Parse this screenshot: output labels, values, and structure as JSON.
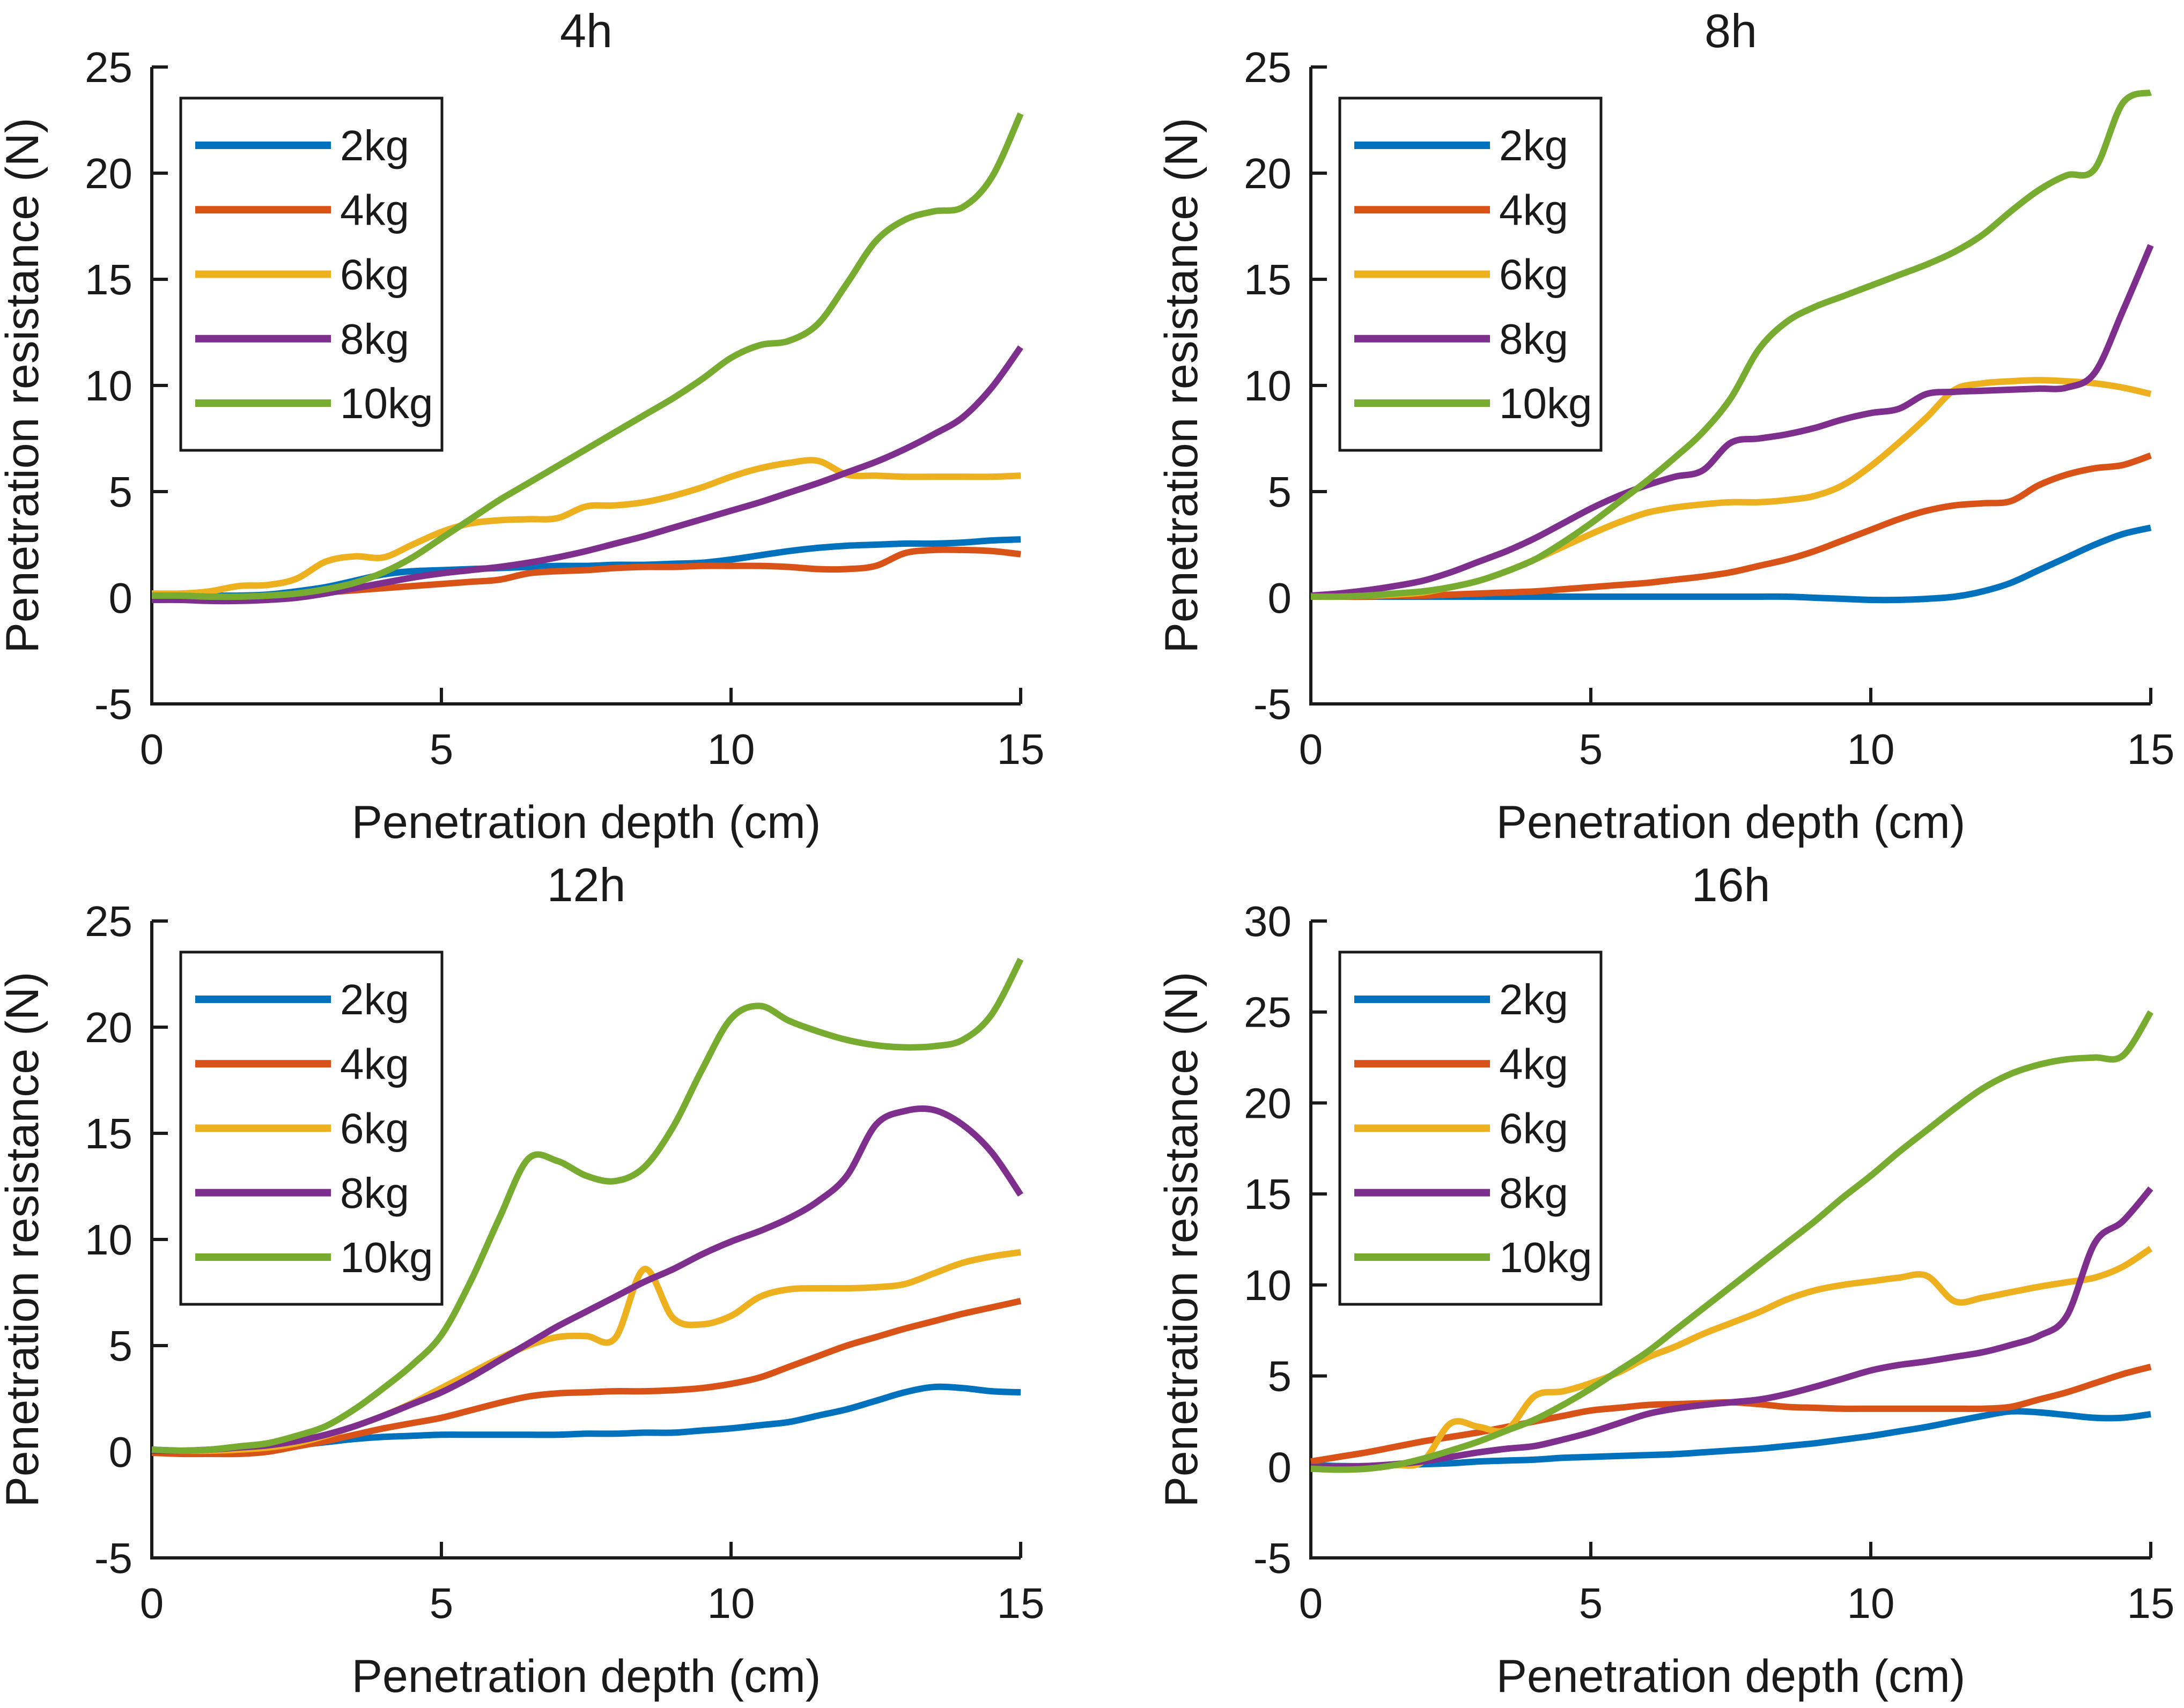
{
  "page": {
    "background": "#ffffff",
    "text_color": "#1a1a1a",
    "axis_color": "#1a1a1a"
  },
  "chart_data": [
    {
      "type": "line",
      "title": "4h",
      "xlabel": "Penetration depth（cm）",
      "ylabel": "Penetration resistance（N）",
      "xlim": [
        0,
        15
      ],
      "ylim": [
        -5,
        25
      ],
      "xticks": [
        0,
        5,
        10,
        15
      ],
      "yticks": [
        -5,
        0,
        5,
        10,
        15,
        20,
        25
      ],
      "grid": false,
      "legend_position": "top-left",
      "x_start": 0,
      "x_step": 0.5,
      "series": [
        {
          "name": "2kg",
          "color": "#0072BD",
          "values": [
            0.1,
            0.1,
            0.1,
            0.1,
            0.15,
            0.3,
            0.5,
            0.8,
            1.1,
            1.25,
            1.3,
            1.35,
            1.4,
            1.45,
            1.5,
            1.5,
            1.55,
            1.55,
            1.6,
            1.65,
            1.8,
            2.0,
            2.2,
            2.35,
            2.45,
            2.5,
            2.55,
            2.55,
            2.6,
            2.7,
            2.75
          ]
        },
        {
          "name": "4kg",
          "color": "#D95319",
          "values": [
            0.05,
            0.05,
            0.05,
            0.05,
            0.1,
            0.15,
            0.25,
            0.35,
            0.45,
            0.55,
            0.65,
            0.75,
            0.85,
            1.15,
            1.25,
            1.3,
            1.4,
            1.45,
            1.45,
            1.5,
            1.5,
            1.5,
            1.45,
            1.35,
            1.35,
            1.5,
            2.1,
            2.25,
            2.25,
            2.2,
            2.05
          ]
        },
        {
          "name": "6kg",
          "color": "#EDB120",
          "values": [
            0.2,
            0.2,
            0.3,
            0.55,
            0.6,
            0.9,
            1.7,
            1.95,
            1.9,
            2.5,
            3.1,
            3.5,
            3.65,
            3.7,
            3.75,
            4.3,
            4.35,
            4.5,
            4.8,
            5.2,
            5.7,
            6.1,
            6.35,
            6.45,
            5.8,
            5.75,
            5.7,
            5.7,
            5.7,
            5.7,
            5.75
          ]
        },
        {
          "name": "8kg",
          "color": "#7E2F8E",
          "values": [
            -0.1,
            -0.1,
            -0.15,
            -0.15,
            -0.1,
            0.0,
            0.2,
            0.45,
            0.7,
            0.95,
            1.15,
            1.3,
            1.45,
            1.65,
            1.9,
            2.2,
            2.55,
            2.9,
            3.3,
            3.7,
            4.1,
            4.5,
            4.95,
            5.4,
            5.9,
            6.4,
            7.0,
            7.7,
            8.5,
            9.9,
            11.8
          ]
        },
        {
          "name": "10kg",
          "color": "#77AC30",
          "values": [
            0.1,
            0.1,
            0.05,
            0.05,
            0.1,
            0.2,
            0.4,
            0.7,
            1.2,
            1.9,
            2.8,
            3.7,
            4.6,
            5.4,
            6.2,
            7.0,
            7.8,
            8.6,
            9.4,
            10.3,
            11.3,
            11.9,
            12.1,
            12.9,
            14.8,
            16.8,
            17.8,
            18.2,
            18.4,
            19.8,
            22.8
          ]
        }
      ]
    },
    {
      "type": "line",
      "title": "8h",
      "xlabel": "Penetration depth（cm）",
      "ylabel": "Penetration resistance（N）",
      "xlim": [
        0,
        15
      ],
      "ylim": [
        -5,
        25
      ],
      "xticks": [
        0,
        5,
        10,
        15
      ],
      "yticks": [
        -5,
        0,
        5,
        10,
        15,
        20,
        25
      ],
      "grid": false,
      "legend_position": "top-left",
      "x_start": 0,
      "x_step": 0.5,
      "series": [
        {
          "name": "2kg",
          "color": "#0072BD",
          "values": [
            0.05,
            0.05,
            0.05,
            0.05,
            0.05,
            0.05,
            0.05,
            0.05,
            0.05,
            0.05,
            0.05,
            0.05,
            0.05,
            0.05,
            0.05,
            0.05,
            0.05,
            0.05,
            0.0,
            -0.05,
            -0.1,
            -0.1,
            -0.05,
            0.05,
            0.3,
            0.7,
            1.3,
            1.9,
            2.5,
            3.0,
            3.3
          ]
        },
        {
          "name": "4kg",
          "color": "#D95319",
          "values": [
            0.05,
            0.05,
            0.05,
            0.1,
            0.1,
            0.15,
            0.2,
            0.25,
            0.3,
            0.4,
            0.5,
            0.6,
            0.7,
            0.85,
            1.0,
            1.2,
            1.5,
            1.8,
            2.2,
            2.7,
            3.2,
            3.7,
            4.1,
            4.35,
            4.45,
            4.55,
            5.3,
            5.8,
            6.1,
            6.25,
            6.7
          ]
        },
        {
          "name": "6kg",
          "color": "#EDB120",
          "values": [
            0.1,
            0.1,
            0.1,
            0.15,
            0.25,
            0.5,
            0.8,
            1.25,
            1.8,
            2.4,
            3.0,
            3.55,
            4.0,
            4.25,
            4.4,
            4.5,
            4.5,
            4.6,
            4.8,
            5.3,
            6.2,
            7.3,
            8.5,
            9.8,
            10.1,
            10.2,
            10.25,
            10.2,
            10.1,
            9.9,
            9.6
          ]
        },
        {
          "name": "8kg",
          "color": "#7E2F8E",
          "values": [
            0.1,
            0.2,
            0.35,
            0.55,
            0.8,
            1.2,
            1.7,
            2.2,
            2.8,
            3.5,
            4.2,
            4.8,
            5.3,
            5.7,
            6.0,
            7.3,
            7.5,
            7.7,
            8.0,
            8.4,
            8.7,
            8.9,
            9.6,
            9.7,
            9.75,
            9.8,
            9.85,
            9.9,
            10.6,
            13.5,
            16.6
          ]
        },
        {
          "name": "10kg",
          "color": "#77AC30",
          "values": [
            0.05,
            0.05,
            0.1,
            0.2,
            0.3,
            0.5,
            0.8,
            1.25,
            1.8,
            2.6,
            3.5,
            4.5,
            5.5,
            6.6,
            7.8,
            9.4,
            11.7,
            13.0,
            13.7,
            14.2,
            14.7,
            15.2,
            15.7,
            16.3,
            17.1,
            18.2,
            19.2,
            19.9,
            20.2,
            23.3,
            23.8
          ]
        }
      ]
    },
    {
      "type": "line",
      "title": "12h",
      "xlabel": "Penetration depth（cm）",
      "ylabel": "Penetration resistance（N）",
      "xlim": [
        0,
        15
      ],
      "ylim": [
        -5,
        25
      ],
      "xticks": [
        0,
        5,
        10,
        15
      ],
      "yticks": [
        -5,
        0,
        5,
        10,
        15,
        20,
        25
      ],
      "grid": false,
      "legend_position": "top-left",
      "x_start": 0,
      "x_step": 0.5,
      "series": [
        {
          "name": "2kg",
          "color": "#0072BD",
          "values": [
            0.1,
            0.05,
            0.05,
            0.1,
            0.15,
            0.3,
            0.45,
            0.6,
            0.7,
            0.75,
            0.8,
            0.8,
            0.8,
            0.8,
            0.8,
            0.85,
            0.85,
            0.9,
            0.9,
            1.0,
            1.1,
            1.25,
            1.4,
            1.7,
            2.0,
            2.4,
            2.8,
            3.05,
            3.0,
            2.85,
            2.8
          ]
        },
        {
          "name": "4kg",
          "color": "#D95319",
          "values": [
            -0.05,
            -0.1,
            -0.1,
            -0.1,
            0.0,
            0.25,
            0.5,
            0.8,
            1.1,
            1.35,
            1.6,
            1.95,
            2.3,
            2.6,
            2.75,
            2.8,
            2.85,
            2.85,
            2.9,
            3.0,
            3.2,
            3.5,
            4.0,
            4.5,
            5.0,
            5.4,
            5.8,
            6.15,
            6.5,
            6.8,
            7.1
          ]
        },
        {
          "name": "6kg",
          "color": "#EDB120",
          "values": [
            0.05,
            0.05,
            0.05,
            0.1,
            0.2,
            0.4,
            0.75,
            1.2,
            1.7,
            2.3,
            3.0,
            3.7,
            4.4,
            5.0,
            5.4,
            5.45,
            5.35,
            8.6,
            6.3,
            6.0,
            6.4,
            7.3,
            7.65,
            7.7,
            7.7,
            7.75,
            7.9,
            8.4,
            8.9,
            9.2,
            9.4
          ]
        },
        {
          "name": "8kg",
          "color": "#7E2F8E",
          "values": [
            0.05,
            0.05,
            0.1,
            0.2,
            0.3,
            0.5,
            0.8,
            1.2,
            1.7,
            2.25,
            2.8,
            3.5,
            4.3,
            5.1,
            5.9,
            6.6,
            7.3,
            8.0,
            8.6,
            9.3,
            9.9,
            10.4,
            11.0,
            11.8,
            13.0,
            15.4,
            16.05,
            16.1,
            15.4,
            14.1,
            12.1
          ]
        },
        {
          "name": "10kg",
          "color": "#77AC30",
          "values": [
            0.1,
            0.05,
            0.1,
            0.25,
            0.4,
            0.75,
            1.2,
            2.0,
            3.0,
            4.1,
            5.5,
            8.0,
            11.0,
            13.8,
            13.7,
            13.0,
            12.75,
            13.4,
            15.3,
            18.0,
            20.4,
            21.0,
            20.3,
            19.8,
            19.4,
            19.15,
            19.05,
            19.1,
            19.4,
            20.6,
            23.2
          ]
        }
      ]
    },
    {
      "type": "line",
      "title": "16h",
      "xlabel": "Penetration depth（cm）",
      "ylabel": "Penetration resistance（N）",
      "xlim": [
        0,
        15
      ],
      "ylim": [
        -5,
        30
      ],
      "xticks": [
        0,
        5,
        10,
        15
      ],
      "yticks": [
        -5,
        0,
        5,
        10,
        15,
        20,
        25,
        30
      ],
      "grid": false,
      "legend_position": "top-left",
      "x_start": 0,
      "x_step": 0.5,
      "series": [
        {
          "name": "2kg",
          "color": "#0072BD",
          "values": [
            0.1,
            0.05,
            0.05,
            0.1,
            0.15,
            0.2,
            0.3,
            0.35,
            0.4,
            0.5,
            0.55,
            0.6,
            0.65,
            0.7,
            0.8,
            0.9,
            1.0,
            1.15,
            1.3,
            1.5,
            1.7,
            1.95,
            2.2,
            2.5,
            2.8,
            3.05,
            3.0,
            2.85,
            2.7,
            2.7,
            2.9
          ]
        },
        {
          "name": "4kg",
          "color": "#D95319",
          "values": [
            0.3,
            0.55,
            0.8,
            1.1,
            1.4,
            1.65,
            1.9,
            2.2,
            2.5,
            2.8,
            3.1,
            3.25,
            3.4,
            3.45,
            3.5,
            3.55,
            3.45,
            3.3,
            3.25,
            3.2,
            3.2,
            3.2,
            3.2,
            3.2,
            3.2,
            3.3,
            3.7,
            4.1,
            4.6,
            5.1,
            5.5
          ]
        },
        {
          "name": "6kg",
          "color": "#EDB120",
          "values": [
            0.0,
            0.0,
            0.05,
            0.1,
            0.3,
            2.4,
            2.2,
            2.05,
            3.9,
            4.15,
            4.6,
            5.2,
            6.0,
            6.6,
            7.3,
            7.9,
            8.5,
            9.2,
            9.7,
            10.0,
            10.2,
            10.4,
            10.5,
            9.1,
            9.3,
            9.6,
            9.9,
            10.15,
            10.4,
            11.0,
            12.0
          ]
        },
        {
          "name": "8kg",
          "color": "#7E2F8E",
          "values": [
            0.0,
            0.0,
            0.05,
            0.15,
            0.3,
            0.55,
            0.8,
            1.0,
            1.15,
            1.5,
            1.9,
            2.4,
            2.9,
            3.2,
            3.4,
            3.55,
            3.7,
            4.0,
            4.4,
            4.85,
            5.3,
            5.6,
            5.8,
            6.05,
            6.3,
            6.7,
            7.2,
            8.3,
            12.3,
            13.5,
            15.3
          ]
        },
        {
          "name": "10kg",
          "color": "#77AC30",
          "values": [
            -0.1,
            -0.15,
            -0.1,
            0.1,
            0.45,
            0.9,
            1.4,
            2.0,
            2.6,
            3.4,
            4.3,
            5.3,
            6.3,
            7.5,
            8.7,
            9.9,
            11.1,
            12.3,
            13.5,
            14.8,
            16.0,
            17.3,
            18.5,
            19.7,
            20.8,
            21.6,
            22.1,
            22.4,
            22.5,
            22.6,
            25.0
          ]
        }
      ]
    }
  ]
}
